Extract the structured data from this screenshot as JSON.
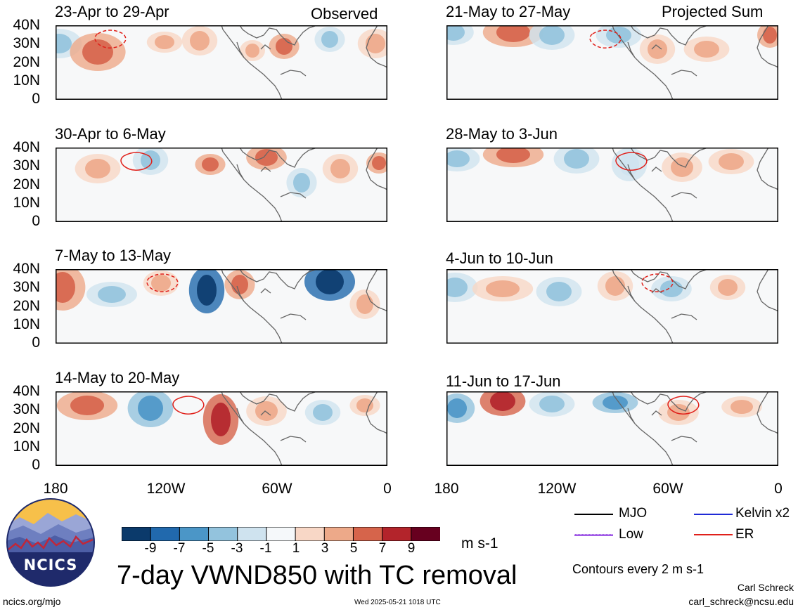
{
  "colors": {
    "colorbar": [
      "#0b3a6b",
      "#2169ad",
      "#4b96c7",
      "#93c3dd",
      "#cfe3ef",
      "#f5f8fa",
      "#f8d7c6",
      "#eda989",
      "#d6644b",
      "#b3242b",
      "#67001f"
    ],
    "mjo": "#000000",
    "kelvin": "#1f2bd6",
    "low": "#a05ae6",
    "er": "#e0201a",
    "coast": "#666666"
  },
  "columns": {
    "left": {
      "corner_label": "Observed"
    },
    "right": {
      "corner_label": "Projected Sum"
    }
  },
  "panels": {
    "left": [
      {
        "title": "23-Apr to 29-Apr"
      },
      {
        "title": "30-Apr to 6-May"
      },
      {
        "title": "7-May to 13-May"
      },
      {
        "title": "14-May to 20-May"
      }
    ],
    "right": [
      {
        "title": "21-May to 27-May"
      },
      {
        "title": "28-May to 3-Jun"
      },
      {
        "title": "4-Jun to 10-Jun"
      },
      {
        "title": "11-Jun to 17-Jun"
      }
    ]
  },
  "axes": {
    "y_ticks": [
      "40N",
      "30N",
      "20N",
      "10N",
      "0"
    ],
    "x_ticks": [
      "180",
      "120W",
      "60W",
      "0"
    ]
  },
  "colorbar": {
    "labels": [
      "-9",
      "-7",
      "-5",
      "-3",
      "-1",
      "1",
      "3",
      "5",
      "7",
      "9"
    ],
    "units": "m s-1"
  },
  "title": "7-day VWND850 with TC removal",
  "legend": {
    "mjo": "MJO",
    "kelvin": "Kelvin x2",
    "low": "Low",
    "er": "ER",
    "contour_note": "Contours every 2 m s-1"
  },
  "logo_text": "NCICS",
  "footer": {
    "url": "ncics.org/mjo",
    "timestamp": "Wed 2025-05-21 1018 UTC",
    "author": "Carl Schreck",
    "email": "carl_schreck@ncsu.edu"
  }
}
